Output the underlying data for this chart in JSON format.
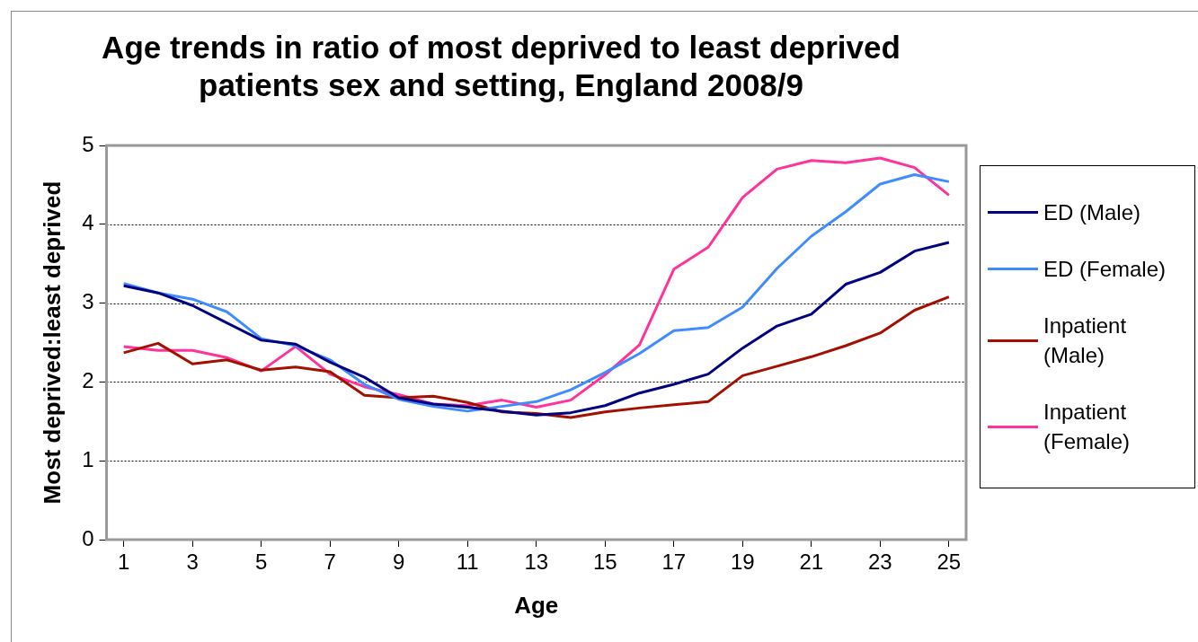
{
  "chart_data": {
    "type": "line",
    "title": "Age trends in ratio of most deprived to least deprived patients sex and setting, England 2008/9",
    "xlabel": "Age",
    "ylabel": "Most deprived:least deprived",
    "x": [
      1,
      2,
      3,
      4,
      5,
      6,
      7,
      8,
      9,
      10,
      11,
      12,
      13,
      14,
      15,
      16,
      17,
      18,
      19,
      20,
      21,
      22,
      23,
      24,
      25
    ],
    "xlim": [
      0.5,
      25.5
    ],
    "xticks": [
      1,
      3,
      5,
      7,
      9,
      11,
      13,
      15,
      17,
      19,
      21,
      23,
      25
    ],
    "series": [
      {
        "name": "ED (Male)",
        "color": "#000080",
        "values": [
          3.22,
          3.13,
          2.97,
          2.75,
          2.53,
          2.48,
          2.25,
          2.06,
          1.8,
          1.72,
          1.68,
          1.63,
          1.58,
          1.61,
          1.7,
          1.86,
          1.97,
          2.1,
          2.43,
          2.71,
          2.86,
          3.24,
          3.39,
          3.66,
          3.77
        ]
      },
      {
        "name": "ED (Female)",
        "color": "#3f8cff",
        "values": [
          3.25,
          3.13,
          3.05,
          2.89,
          2.55,
          2.46,
          2.28,
          1.97,
          1.78,
          1.69,
          1.63,
          1.69,
          1.75,
          1.9,
          2.12,
          2.36,
          2.65,
          2.69,
          2.95,
          3.44,
          3.85,
          4.16,
          4.51,
          4.63,
          4.54
        ]
      },
      {
        "name": "Inpatient (Male)",
        "color": "#a31000",
        "values": [
          2.37,
          2.49,
          2.23,
          2.28,
          2.15,
          2.19,
          2.13,
          1.83,
          1.8,
          1.82,
          1.74,
          1.62,
          1.6,
          1.55,
          1.62,
          1.67,
          1.71,
          1.75,
          2.08,
          2.2,
          2.32,
          2.46,
          2.62,
          2.91,
          3.08
        ]
      },
      {
        "name": "Inpatient (Female)",
        "color": "#ff3399",
        "values": [
          2.45,
          2.4,
          2.4,
          2.31,
          2.14,
          2.45,
          2.1,
          1.94,
          1.84,
          1.72,
          1.7,
          1.77,
          1.68,
          1.77,
          2.09,
          2.47,
          3.43,
          3.71,
          4.34,
          4.7,
          4.81,
          4.78,
          4.84,
          4.72,
          4.37
        ]
      }
    ],
    "ylim": [
      0,
      5
    ],
    "yticks": [
      0,
      1,
      2,
      3,
      4,
      5
    ],
    "grid": "y",
    "legend": "right",
    "marker": "none",
    "line_style": "solid"
  }
}
